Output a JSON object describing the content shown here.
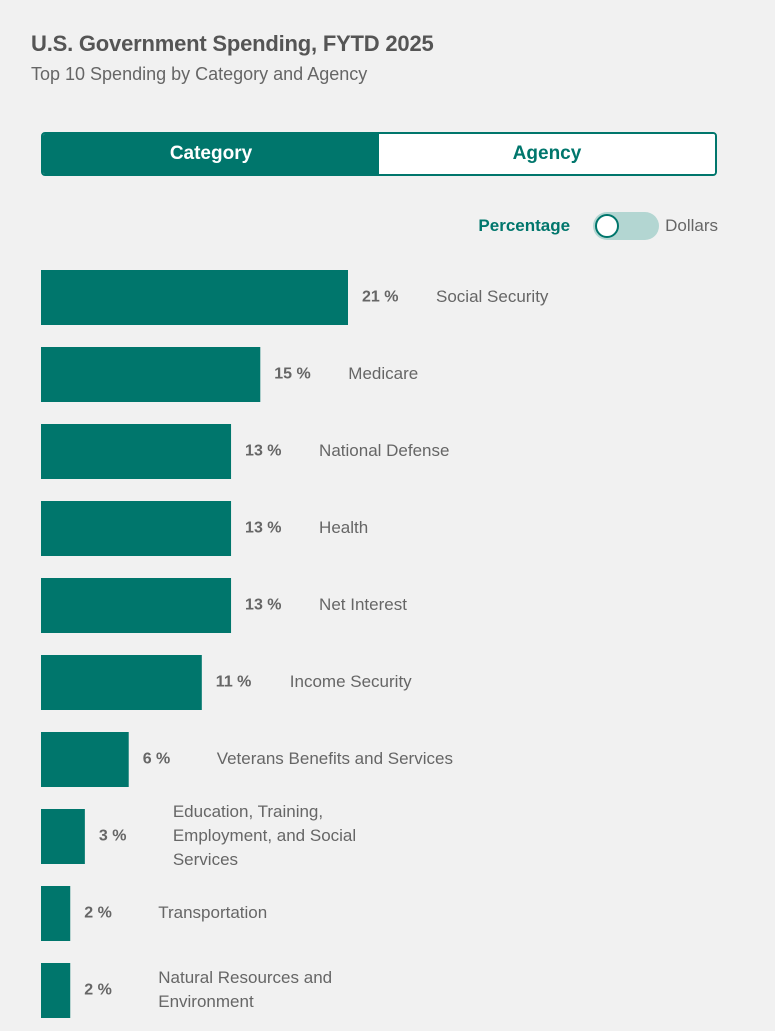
{
  "header": {
    "title": "U.S. Government Spending, FYTD 2025",
    "subtitle": "Top 10 Spending by Category and Agency"
  },
  "tabs": [
    {
      "label": "Category",
      "active": true
    },
    {
      "label": "Agency",
      "active": false
    }
  ],
  "toggle": {
    "left_label": "Percentage",
    "right_label": "Dollars",
    "selected": "Percentage"
  },
  "colors": {
    "accent": "#00766c",
    "toggle_track": "#b3d6d2",
    "background": "#f1f1f1"
  },
  "chart_data": {
    "type": "bar",
    "orientation": "horizontal",
    "unit": "%",
    "categories": [
      "Social Security",
      "Medicare",
      "National Defense",
      "Health",
      "Net Interest",
      "Income Security",
      "Veterans Benefits and Services",
      "Education, Training, Employment, and Social Services",
      "Transportation",
      "Natural Resources and Environment"
    ],
    "category_lines": [
      [
        "Social Security"
      ],
      [
        "Medicare"
      ],
      [
        "National Defense"
      ],
      [
        "Health"
      ],
      [
        "Net Interest"
      ],
      [
        "Income Security"
      ],
      [
        "Veterans Benefits and Services"
      ],
      [
        "Education, Training,",
        "Employment, and Social",
        "Services"
      ],
      [
        "Transportation"
      ],
      [
        "Natural Resources and",
        "Environment"
      ]
    ],
    "values": [
      21,
      15,
      13,
      13,
      13,
      11,
      6,
      3,
      2,
      2
    ],
    "value_labels": [
      "21 %",
      "15 %",
      "13 %",
      "13 %",
      "13 %",
      "11 %",
      "6 %",
      "3 %",
      "2 %",
      "2 %"
    ],
    "grid": false,
    "legend": "none"
  }
}
